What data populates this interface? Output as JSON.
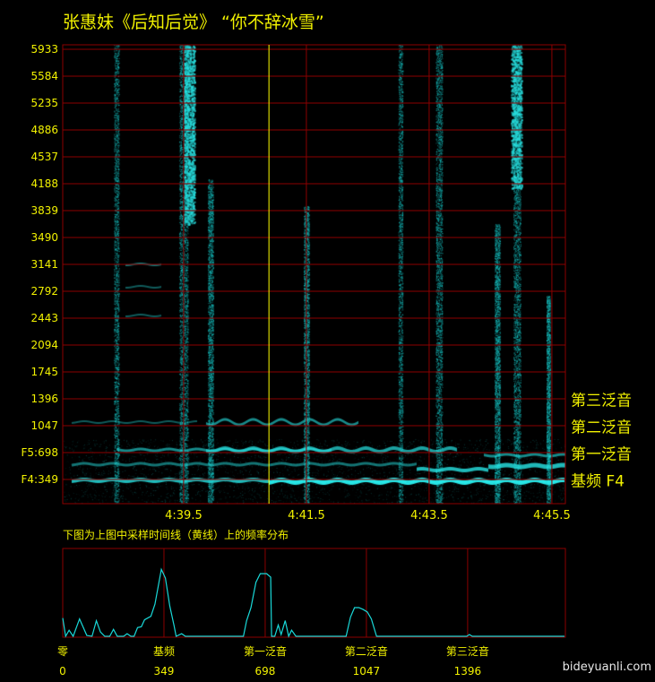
{
  "title": "张惠妹《后知后觉》 “你不辞冰雪”",
  "subtitle": "下图为上图中采样时间线（黄线）上的频率分布",
  "watermark": "bideyuanli.com",
  "colors": {
    "grid": "#8b0000",
    "signal": "#19d9d9",
    "cursor": "#ffff00",
    "text": "#f2f200",
    "background": "#000000"
  },
  "chart_data": [
    {
      "type": "heatmap",
      "title": "张惠妹《后知后觉》 “你不辞冰雪”",
      "y_unit": "Hz",
      "y_ticks": [
        {
          "value": 5933,
          "label": "5933"
        },
        {
          "value": 5584,
          "label": "5584"
        },
        {
          "value": 5235,
          "label": "5235"
        },
        {
          "value": 4886,
          "label": "4886"
        },
        {
          "value": 4537,
          "label": "4537"
        },
        {
          "value": 4188,
          "label": "4188"
        },
        {
          "value": 3839,
          "label": "3839"
        },
        {
          "value": 3490,
          "label": "3490"
        },
        {
          "value": 3141,
          "label": "3141"
        },
        {
          "value": 2792,
          "label": "2792"
        },
        {
          "value": 2443,
          "label": "2443"
        },
        {
          "value": 2094,
          "label": "2094"
        },
        {
          "value": 1745,
          "label": "1745"
        },
        {
          "value": 1396,
          "label": "1396"
        },
        {
          "value": 1047,
          "label": "1047"
        },
        {
          "value": 698,
          "label": "F5:698"
        },
        {
          "value": 349,
          "label": "F4:349"
        }
      ],
      "x_ticks": [
        {
          "value": 279.5,
          "label": "4:39.5"
        },
        {
          "value": 281.5,
          "label": "4:41.5"
        },
        {
          "value": 283.5,
          "label": "4:43.5"
        },
        {
          "value": 285.5,
          "label": "4:45.5"
        }
      ],
      "xlim_seconds": [
        277.53,
        285.72
      ],
      "ylim_hz": [
        0,
        6050
      ],
      "cursor_time_seconds": 280.89,
      "harmonic_labels": [
        {
          "value": 1396,
          "label": "第三泛音"
        },
        {
          "value": 1047,
          "label": "第二泛音"
        },
        {
          "value": 698,
          "label": "第一泛音"
        },
        {
          "value": 349,
          "label": "基频 F4"
        }
      ],
      "grid": true
    },
    {
      "type": "line",
      "xlim": [
        0,
        1733
      ],
      "ylim": [
        0,
        1
      ],
      "grid": true,
      "x_ticks": [
        {
          "value": 0,
          "name": "零",
          "label": "0"
        },
        {
          "value": 349,
          "name": "基频",
          "label": "349"
        },
        {
          "value": 698,
          "name": "第一泛音",
          "label": "698"
        },
        {
          "value": 1047,
          "name": "第二泛音",
          "label": "1047"
        },
        {
          "value": 1396,
          "name": "第三泛音",
          "label": "1396"
        }
      ],
      "x": [
        0,
        10,
        22,
        36,
        58,
        83,
        101,
        116,
        130,
        145,
        162,
        175,
        188,
        210,
        222,
        235,
        246,
        258,
        271,
        282,
        304,
        318,
        340,
        354,
        369,
        384,
        391,
        410,
        423,
        623,
        634,
        649,
        666,
        681,
        692,
        703,
        717,
        720,
        731,
        743,
        753,
        767,
        779,
        789,
        804,
        977,
        992,
        1006,
        1021,
        1035,
        1050,
        1064,
        1082,
        1393,
        1402,
        1412,
        1730
      ],
      "y": [
        0.21,
        0,
        0.07,
        0,
        0.2,
        0.01,
        0,
        0.18,
        0.05,
        0,
        0,
        0.08,
        0,
        0,
        0.03,
        0,
        0,
        0.1,
        0.11,
        0.19,
        0.23,
        0.37,
        0.77,
        0.67,
        0.35,
        0.12,
        0,
        0.03,
        0,
        0,
        0.18,
        0.33,
        0.62,
        0.72,
        0.72,
        0.72,
        0.68,
        0,
        0,
        0.13,
        0.02,
        0.18,
        0,
        0.07,
        0,
        0,
        0.22,
        0.33,
        0.33,
        0.31,
        0.28,
        0.2,
        0,
        0,
        0.02,
        0,
        0
      ]
    }
  ]
}
